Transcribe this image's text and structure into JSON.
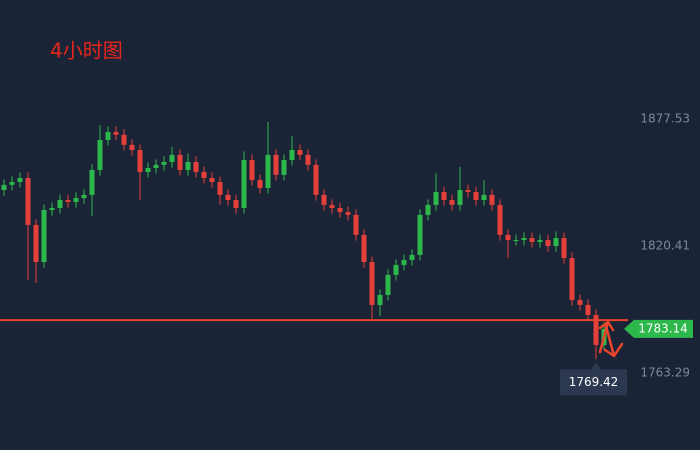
{
  "chart_data": {
    "type": "candlestick",
    "title": "4小时图",
    "ylim": [
      1728.66,
      1931.06
    ],
    "yticks": [
      1763.29,
      1820.41,
      1877.53
    ],
    "up_color": "#2db84c",
    "down_color": "#e5403a",
    "support_level": 1787.1,
    "support_color": "#e8452c",
    "last_price": 1783.14,
    "low_marker": 1769.42,
    "open": [
      1845.6,
      1847.9,
      1849.2,
      1851.0,
      1829.9,
      1813.2,
      1836.6,
      1837.5,
      1841.1,
      1840.2,
      1842.0,
      1843.4,
      1854.6,
      1868.1,
      1871.7,
      1870.4,
      1865.9,
      1863.6,
      1853.7,
      1855.5,
      1856.9,
      1858.2,
      1861.4,
      1854.6,
      1858.2,
      1853.7,
      1851.0,
      1849.2,
      1843.4,
      1841.1,
      1837.5,
      1859.1,
      1850.1,
      1846.5,
      1861.4,
      1852.4,
      1859.1,
      1863.6,
      1861.4,
      1856.9,
      1843.4,
      1838.9,
      1837.5,
      1835.7,
      1834.4,
      1825.4,
      1813.2,
      1793.9,
      1798.4,
      1807.4,
      1811.9,
      1814.1,
      1816.4,
      1834.4,
      1838.9,
      1844.7,
      1841.1,
      1838.9,
      1845.6,
      1844.7,
      1841.1,
      1843.4,
      1838.9,
      1825.4,
      1823.1,
      1823.1,
      1824.0,
      1822.2,
      1823.1,
      1820.4,
      1824.0,
      1815.0,
      1796.1,
      1793.9,
      1789.4,
      1775.9
    ],
    "high": [
      1850.4,
      1851.7,
      1853.5,
      1853.5,
      1832.4,
      1839.1,
      1840.0,
      1843.6,
      1843.6,
      1844.5,
      1845.9,
      1857.1,
      1874.8,
      1874.2,
      1874.2,
      1872.9,
      1868.4,
      1866.1,
      1858.0,
      1859.4,
      1860.7,
      1865.0,
      1863.9,
      1862.0,
      1860.7,
      1856.2,
      1853.5,
      1851.7,
      1845.9,
      1843.6,
      1863.0,
      1861.6,
      1852.6,
      1876.2,
      1863.9,
      1861.6,
      1870.0,
      1866.1,
      1863.9,
      1859.4,
      1845.9,
      1841.4,
      1840.0,
      1838.2,
      1836.9,
      1827.9,
      1815.7,
      1800.9,
      1809.9,
      1814.4,
      1816.6,
      1818.9,
      1836.9,
      1841.4,
      1853.0,
      1847.2,
      1843.6,
      1856.0,
      1848.1,
      1847.2,
      1850.0,
      1845.9,
      1841.4,
      1827.9,
      1825.6,
      1826.5,
      1826.5,
      1825.6,
      1825.6,
      1827.0,
      1826.5,
      1817.5,
      1798.6,
      1796.4,
      1791.9,
      1786.0
    ],
    "low": [
      1843.1,
      1845.4,
      1846.7,
      1805.1,
      1803.8,
      1810.7,
      1834.1,
      1835.0,
      1837.7,
      1837.7,
      1839.5,
      1834.0,
      1852.1,
      1865.6,
      1867.9,
      1863.4,
      1861.1,
      1841.0,
      1851.2,
      1853.0,
      1854.4,
      1855.7,
      1852.1,
      1852.1,
      1851.2,
      1848.5,
      1846.7,
      1839.0,
      1838.6,
      1835.0,
      1835.0,
      1847.6,
      1844.0,
      1844.0,
      1849.9,
      1849.9,
      1856.6,
      1858.9,
      1854.4,
      1840.9,
      1836.4,
      1835.0,
      1833.2,
      1831.9,
      1822.9,
      1810.7,
      1787.1,
      1789.0,
      1795.9,
      1804.9,
      1809.4,
      1811.6,
      1813.9,
      1831.9,
      1836.4,
      1838.6,
      1836.4,
      1836.4,
      1842.2,
      1838.6,
      1838.6,
      1836.4,
      1822.9,
      1815.0,
      1820.6,
      1820.6,
      1819.7,
      1819.7,
      1817.9,
      1817.9,
      1812.5,
      1793.6,
      1791.4,
      1786.9,
      1769.42,
      1773.4
    ],
    "close": [
      1847.9,
      1849.2,
      1851.0,
      1829.9,
      1813.2,
      1836.6,
      1837.5,
      1841.1,
      1840.2,
      1842.0,
      1843.4,
      1854.6,
      1868.1,
      1871.7,
      1870.4,
      1865.9,
      1863.6,
      1853.7,
      1855.5,
      1856.9,
      1858.2,
      1861.4,
      1854.6,
      1858.2,
      1853.7,
      1851.0,
      1849.2,
      1843.4,
      1841.1,
      1837.5,
      1859.1,
      1850.1,
      1846.5,
      1861.4,
      1852.4,
      1859.1,
      1863.6,
      1861.4,
      1856.9,
      1843.4,
      1838.9,
      1837.5,
      1835.7,
      1834.4,
      1825.4,
      1813.2,
      1793.9,
      1798.4,
      1807.4,
      1811.9,
      1814.1,
      1816.4,
      1834.4,
      1838.9,
      1844.7,
      1841.1,
      1838.9,
      1845.6,
      1844.7,
      1841.1,
      1843.4,
      1838.9,
      1825.4,
      1823.1,
      1823.1,
      1824.0,
      1822.2,
      1823.1,
      1820.4,
      1824.0,
      1815.0,
      1796.1,
      1793.9,
      1789.4,
      1775.9,
      1783.14
    ]
  }
}
